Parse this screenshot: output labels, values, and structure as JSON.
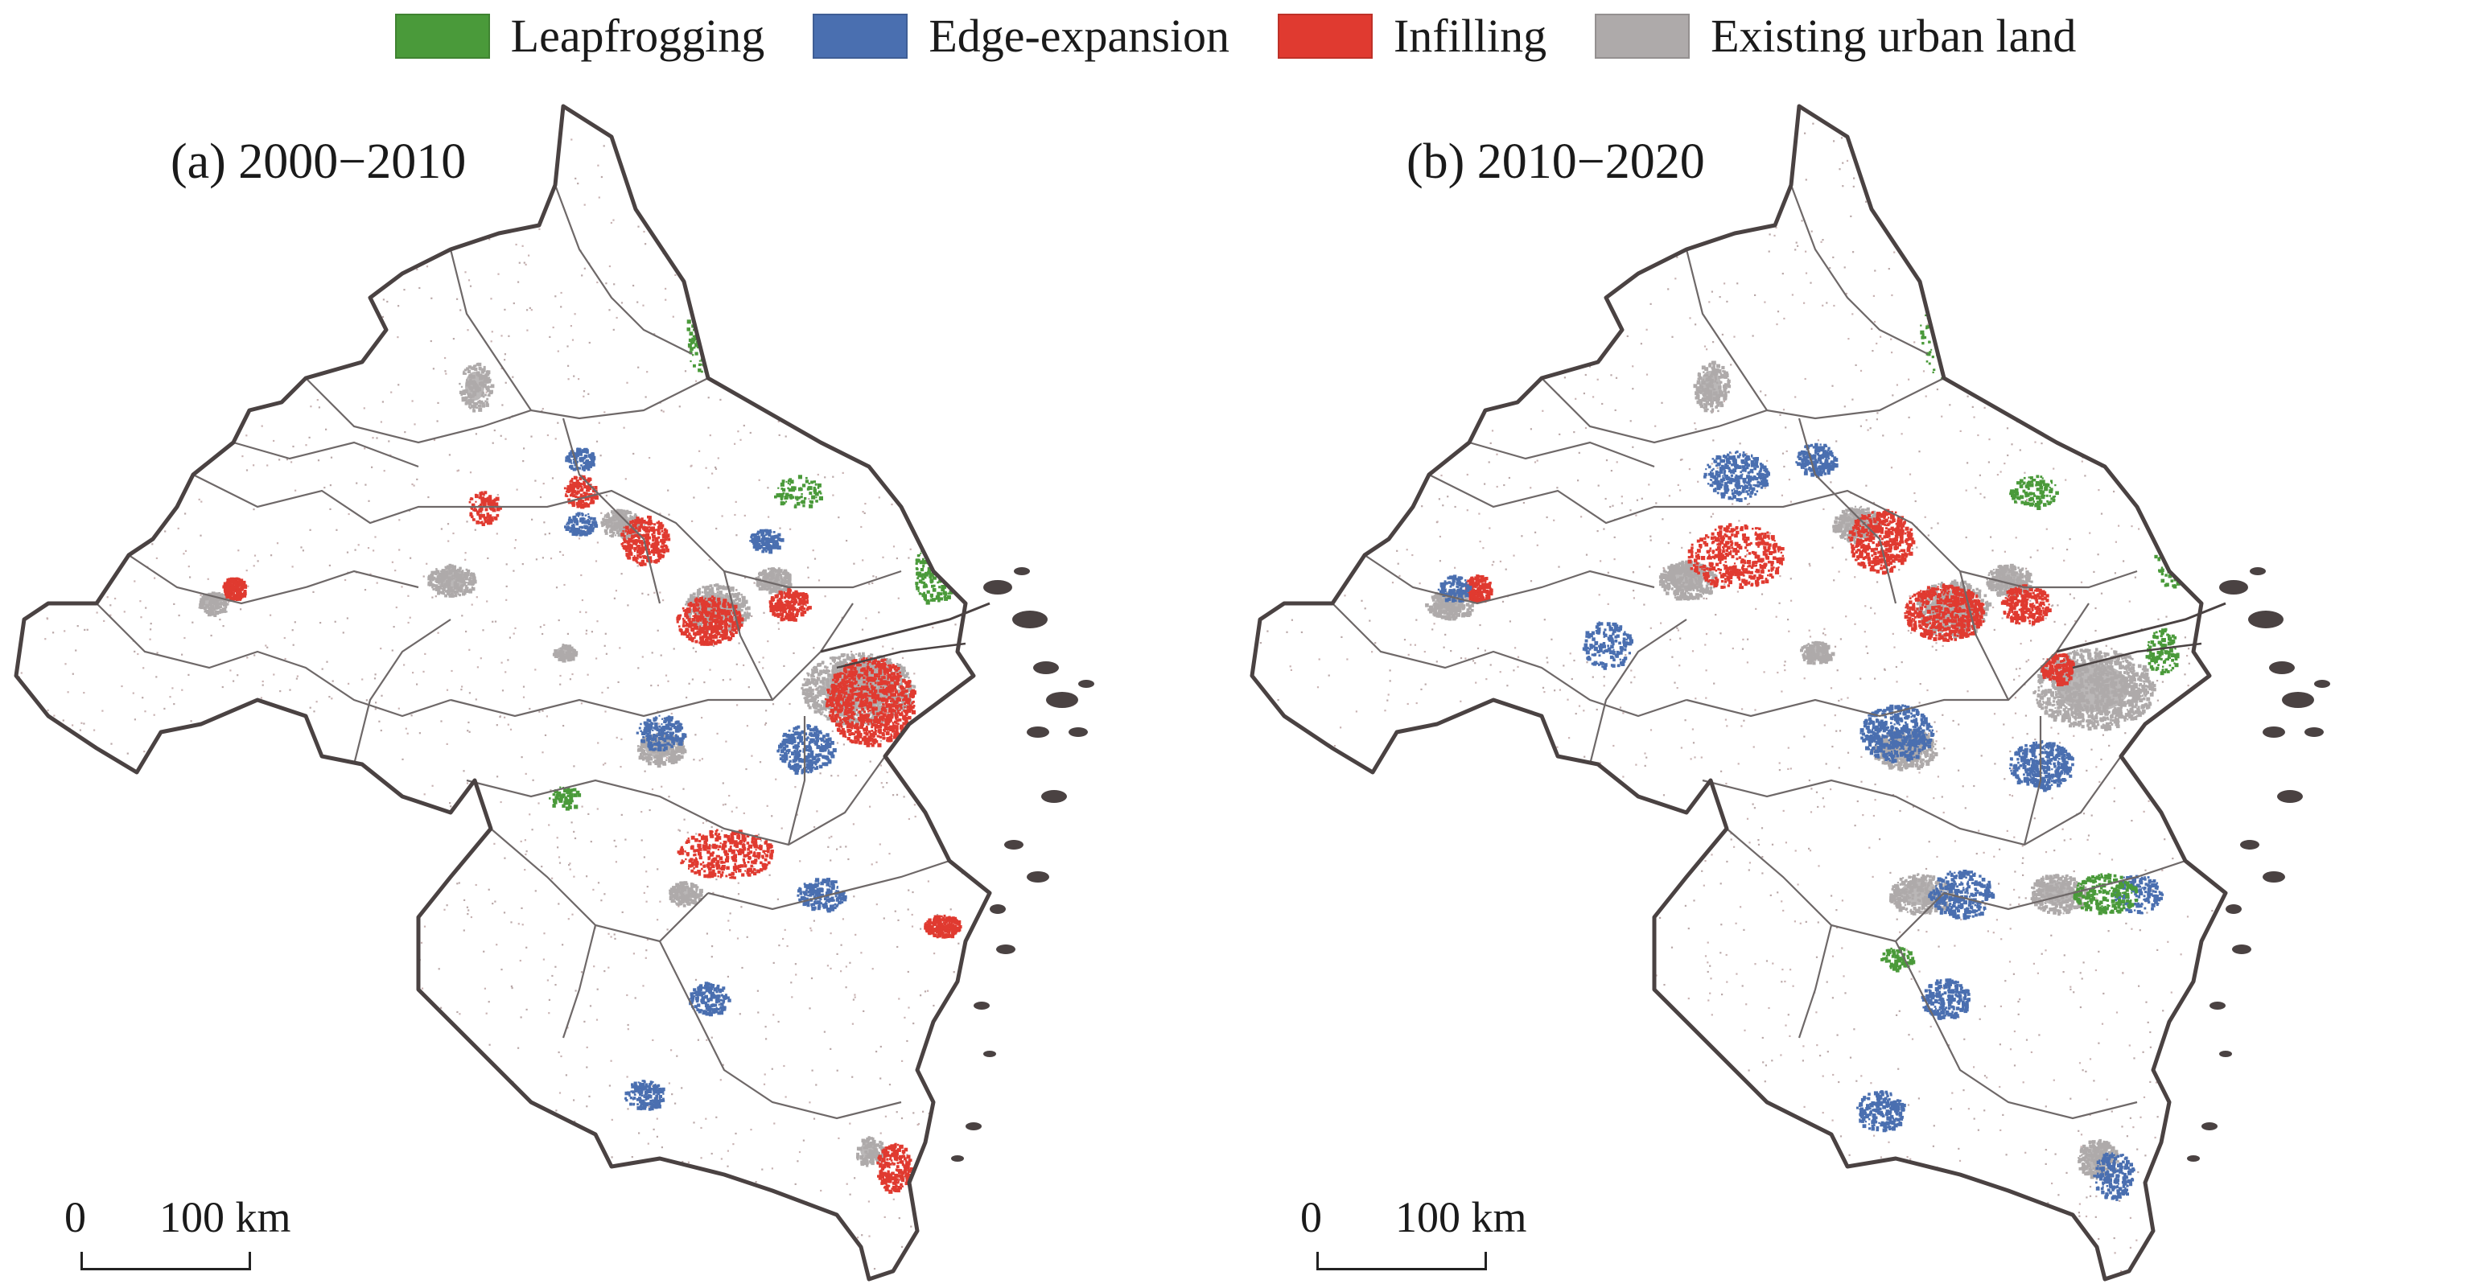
{
  "legend": [
    {
      "label": "Leapfrogging",
      "color": "#4a9a3a"
    },
    {
      "label": "Edge-expansion",
      "color": "#4a6fb0"
    },
    {
      "label": "Infilling",
      "color": "#e03a30"
    },
    {
      "label": "Existing urban land",
      "color": "#aeaaaa"
    }
  ],
  "colors": {
    "outer_border": "#4a4242",
    "inner_border": "#6e6868"
  },
  "panels": [
    {
      "title": "(a) 2000−2010",
      "scale_zero": "0",
      "scale_distance": "100 km"
    },
    {
      "title": "(b) 2010−2020",
      "scale_zero": "0",
      "scale_distance": "100 km"
    }
  ]
}
